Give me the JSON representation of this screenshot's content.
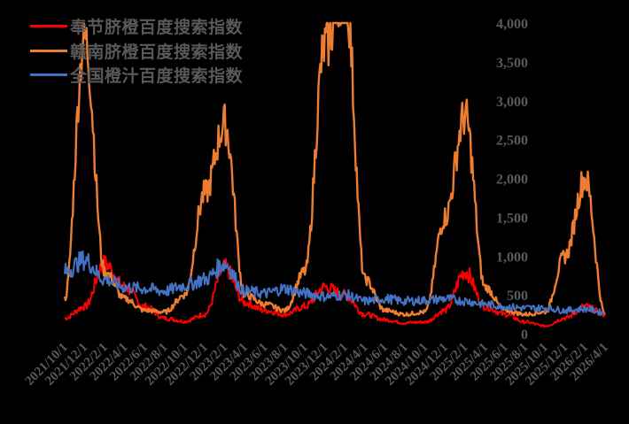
{
  "chart_data": {
    "type": "line",
    "title": "",
    "xlabel": "",
    "ylabel": "",
    "ylim": [
      0,
      4000
    ],
    "grid": false,
    "legend_position": "top-left",
    "background": "#000000",
    "yticks": [
      0,
      500,
      1000,
      1500,
      2000,
      2500,
      3000,
      3500,
      4000
    ],
    "ytick_labels": [
      "0",
      "500",
      "1,000",
      "1,500",
      "2,000",
      "2,500",
      "3,000",
      "3,500",
      "4,000"
    ],
    "categories": [
      "2021/10/1",
      "2021/12/1",
      "2022/2/1",
      "2022/4/1",
      "2022/6/1",
      "2022/8/1",
      "2022/10/1",
      "2022/12/1",
      "2023/2/1",
      "2023/4/1",
      "2023/6/1",
      "2023/8/1",
      "2023/10/1",
      "2023/12/1",
      "2024/2/1",
      "2024/4/1",
      "2024/6/1",
      "2024/8/1",
      "2024/10/1",
      "2024/12/1",
      "2025/2/1",
      "2025/4/1",
      "2025/6/1",
      "2025/8/1",
      "2025/10/1",
      "2025/12/1",
      "2026/2/1",
      "2026/4/1"
    ],
    "series": [
      {
        "name": "奉节脐橙百度搜索指数",
        "color": "#FF0000",
        "values": [
          200,
          350,
          900,
          600,
          350,
          200,
          160,
          250,
          850,
          400,
          300,
          250,
          350,
          600,
          500,
          250,
          180,
          140,
          150,
          300,
          800,
          350,
          250,
          150,
          100,
          200,
          350,
          250
        ]
      },
      {
        "name": "赣南脐橙百度搜索指数",
        "color": "#ED7D31",
        "values": [
          450,
          3800,
          800,
          450,
          300,
          280,
          500,
          1800,
          2700,
          500,
          380,
          300,
          800,
          3700,
          4500,
          700,
          300,
          250,
          280,
          1500,
          2800,
          600,
          300,
          250,
          280,
          1000,
          2000,
          250
        ]
      },
      {
        "name": "全国橙汁百度搜索指数",
        "color": "#4472C4",
        "values": [
          800,
          950,
          700,
          600,
          580,
          550,
          620,
          700,
          900,
          550,
          520,
          580,
          520,
          480,
          500,
          420,
          450,
          420,
          430,
          450,
          420,
          380,
          350,
          330,
          330,
          300,
          320,
          270
        ]
      }
    ]
  },
  "legend": {
    "items": [
      {
        "label": "奉节脐橙百度搜索指数",
        "color": "#FF0000"
      },
      {
        "label": "赣南脐橙百度搜索指数",
        "color": "#ED7D31"
      },
      {
        "label": "全国橙汁百度搜索指数",
        "color": "#4472C4"
      }
    ]
  },
  "axis": {
    "label_color": "#595959"
  }
}
